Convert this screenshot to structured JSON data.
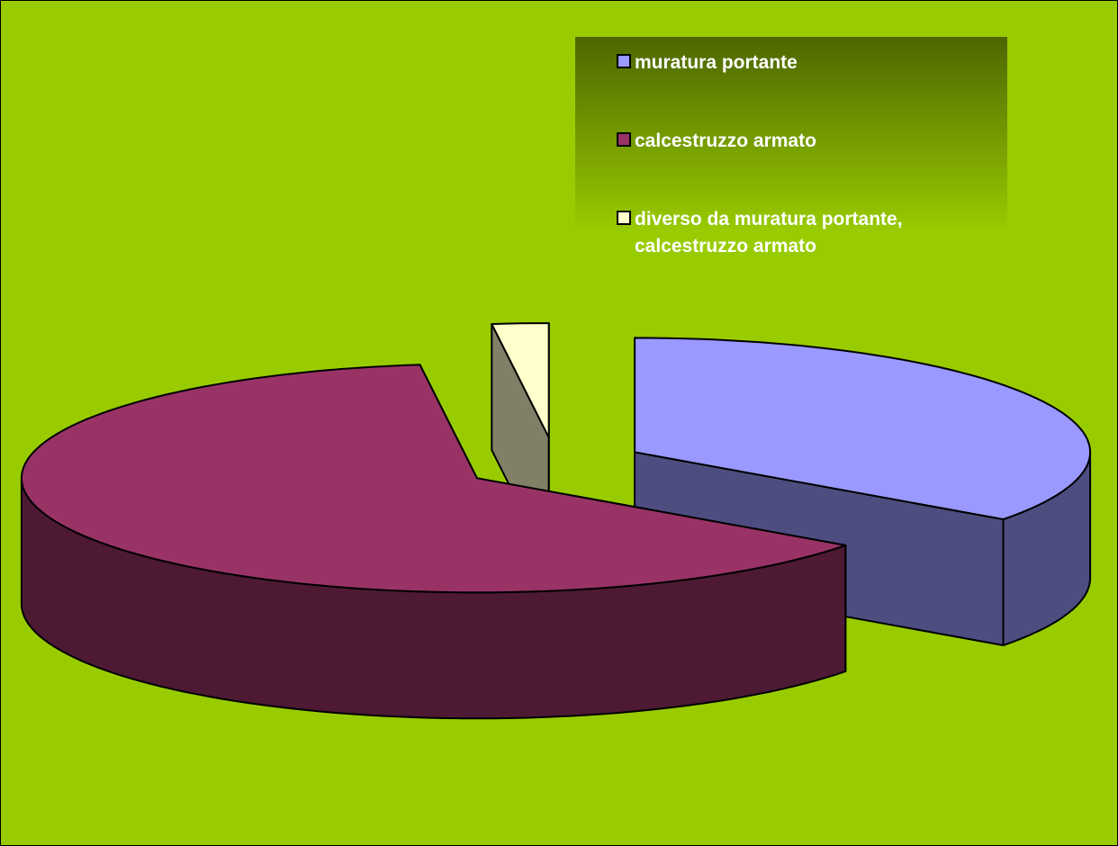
{
  "chart_data": {
    "type": "pie3d",
    "categories": [
      "muratura portante",
      "calcestruzzo armato",
      "diverso da muratura portante, calcestruzzo armato"
    ],
    "values": [
      35,
      63,
      2
    ],
    "colors": [
      "#9999ff",
      "#993366",
      "#ffffcc"
    ],
    "side_colors": [
      "#4d4d80",
      "#4d1933",
      "#808066"
    ],
    "legend": "top-right"
  }
}
